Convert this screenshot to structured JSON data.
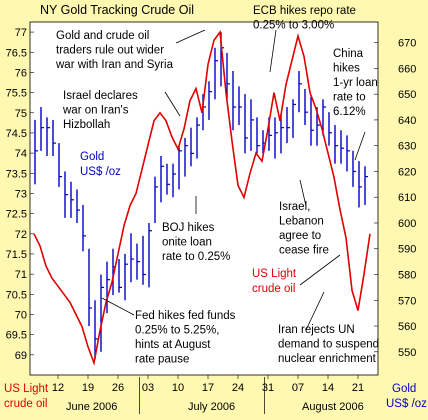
{
  "chart_data": {
    "type": "line",
    "title": "NY Gold Tracking Crude Oil",
    "x_tick_labels": [
      "12",
      "19",
      "26",
      "03",
      "10",
      "17",
      "24",
      "31",
      "07",
      "14",
      "21"
    ],
    "month_labels": [
      "June 2006",
      "July 2006",
      "August 2006"
    ],
    "left_axis": {
      "label_lines": [
        "US Light",
        "crude oil"
      ],
      "color": "#e00000",
      "ylim": [
        68.5,
        77.25
      ],
      "ticks": [
        "77",
        "76.5",
        "76",
        "75.5",
        "75",
        "74.5",
        "74",
        "73.5",
        "73",
        "72.5",
        "72",
        "71.5",
        "71",
        "70.5",
        "70",
        "69.5",
        "69"
      ]
    },
    "right_axis": {
      "label_lines": [
        "Gold",
        "US$ /oz"
      ],
      "color": "#0000c8",
      "ylim": [
        541,
        678
      ],
      "ticks": [
        "670",
        "660",
        "650",
        "640",
        "630",
        "620",
        "610",
        "600",
        "590",
        "580",
        "570",
        "560",
        "550"
      ]
    },
    "series": [
      {
        "name": "Gold US$ /oz",
        "kind": "hlc_bars",
        "axis": "right",
        "color": "#0000c8",
        "values": [
          {
            "x": 0,
            "high": 640,
            "low": 615,
            "close": 628
          },
          {
            "x": 1,
            "high": 645,
            "low": 628,
            "close": 637
          },
          {
            "x": 2,
            "high": 641,
            "low": 626,
            "close": 637
          },
          {
            "x": 3,
            "high": 640,
            "low": 626,
            "close": 631
          },
          {
            "x": 4,
            "high": 631,
            "low": 614,
            "close": 618
          },
          {
            "x": 5,
            "high": 620,
            "low": 602,
            "close": 611
          },
          {
            "x": 6,
            "high": 616,
            "low": 602,
            "close": 609
          },
          {
            "x": 7,
            "high": 613,
            "low": 600,
            "close": 605
          },
          {
            "x": 8,
            "high": 607,
            "low": 589,
            "close": 595
          },
          {
            "x": 9,
            "high": 590,
            "low": 560,
            "close": 567
          },
          {
            "x": 10,
            "high": 570,
            "low": 547,
            "close": 555
          },
          {
            "x": 11,
            "high": 580,
            "low": 550,
            "close": 575
          },
          {
            "x": 12,
            "high": 585,
            "low": 565,
            "close": 578
          },
          {
            "x": 13,
            "high": 590,
            "low": 572,
            "close": 583
          },
          {
            "x": 14,
            "high": 586,
            "low": 573,
            "close": 575
          },
          {
            "x": 15,
            "high": 588,
            "low": 570,
            "close": 584
          },
          {
            "x": 16,
            "high": 596,
            "low": 577,
            "close": 586
          },
          {
            "x": 17,
            "high": 592,
            "low": 578,
            "close": 585
          },
          {
            "x": 18,
            "high": 595,
            "low": 576,
            "close": 580
          },
          {
            "x": 19,
            "high": 600,
            "low": 575,
            "close": 597
          },
          {
            "x": 20,
            "high": 618,
            "low": 600,
            "close": 614
          },
          {
            "x": 21,
            "high": 626,
            "low": 608,
            "close": 622
          },
          {
            "x": 22,
            "high": 623,
            "low": 611,
            "close": 615
          },
          {
            "x": 23,
            "high": 623,
            "low": 610,
            "close": 619
          },
          {
            "x": 24,
            "high": 630,
            "low": 613,
            "close": 628
          },
          {
            "x": 25,
            "high": 633,
            "low": 618,
            "close": 630
          },
          {
            "x": 26,
            "high": 637,
            "low": 622,
            "close": 627
          },
          {
            "x": 27,
            "high": 641,
            "low": 625,
            "close": 638
          },
          {
            "x": 28,
            "high": 650,
            "low": 636,
            "close": 645
          },
          {
            "x": 29,
            "high": 655,
            "low": 640,
            "close": 651
          },
          {
            "x": 30,
            "high": 668,
            "low": 648,
            "close": 663
          },
          {
            "x": 31,
            "high": 674,
            "low": 653,
            "close": 668
          },
          {
            "x": 32,
            "high": 666,
            "low": 648,
            "close": 654
          },
          {
            "x": 33,
            "high": 659,
            "low": 636,
            "close": 645
          },
          {
            "x": 34,
            "high": 653,
            "low": 638,
            "close": 645
          },
          {
            "x": 35,
            "high": 650,
            "low": 627,
            "close": 633
          },
          {
            "x": 36,
            "high": 648,
            "low": 628,
            "close": 640
          },
          {
            "x": 37,
            "high": 641,
            "low": 627,
            "close": 630
          },
          {
            "x": 38,
            "high": 636,
            "low": 627,
            "close": 631
          },
          {
            "x": 39,
            "high": 641,
            "low": 628,
            "close": 634
          },
          {
            "x": 40,
            "high": 641,
            "low": 625,
            "close": 635
          },
          {
            "x": 41,
            "high": 642,
            "low": 627,
            "close": 637
          },
          {
            "x": 42,
            "high": 645,
            "low": 631,
            "close": 637
          },
          {
            "x": 43,
            "high": 648,
            "low": 633,
            "close": 646
          },
          {
            "x": 44,
            "high": 659,
            "low": 643,
            "close": 654
          },
          {
            "x": 45,
            "high": 652,
            "low": 638,
            "close": 643
          },
          {
            "x": 46,
            "high": 649,
            "low": 630,
            "close": 636
          },
          {
            "x": 47,
            "high": 645,
            "low": 630,
            "close": 638
          },
          {
            "x": 48,
            "high": 648,
            "low": 634,
            "close": 645
          },
          {
            "x": 49,
            "high": 643,
            "low": 630,
            "close": 635
          },
          {
            "x": 50,
            "high": 638,
            "low": 623,
            "close": 630
          },
          {
            "x": 51,
            "high": 636,
            "low": 623,
            "close": 629
          },
          {
            "x": 52,
            "high": 634,
            "low": 620,
            "close": 628
          },
          {
            "x": 53,
            "high": 628,
            "low": 614,
            "close": 620
          },
          {
            "x": 54,
            "high": 624,
            "low": 606,
            "close": 614
          },
          {
            "x": 55,
            "high": 622,
            "low": 607,
            "close": 618
          }
        ]
      },
      {
        "name": "US Light crude oil",
        "kind": "line",
        "axis": "left",
        "color": "#e00000",
        "values": [
          {
            "x": 0,
            "y": 72.0
          },
          {
            "x": 1,
            "y": 71.7
          },
          {
            "x": 2,
            "y": 71.2
          },
          {
            "x": 3,
            "y": 70.9
          },
          {
            "x": 4,
            "y": 70.7
          },
          {
            "x": 5,
            "y": 70.5
          },
          {
            "x": 6,
            "y": 70.3
          },
          {
            "x": 7,
            "y": 70.0
          },
          {
            "x": 8,
            "y": 69.7
          },
          {
            "x": 9,
            "y": 69.2
          },
          {
            "x": 10,
            "y": 68.8
          },
          {
            "x": 11,
            "y": 69.6
          },
          {
            "x": 12,
            "y": 70.3
          },
          {
            "x": 13,
            "y": 70.8
          },
          {
            "x": 14,
            "y": 71.5
          },
          {
            "x": 15,
            "y": 72.2
          },
          {
            "x": 16,
            "y": 72.7
          },
          {
            "x": 17,
            "y": 73.0
          },
          {
            "x": 18,
            "y": 73.6
          },
          {
            "x": 19,
            "y": 74.2
          },
          {
            "x": 20,
            "y": 74.8
          },
          {
            "x": 21,
            "y": 75.0
          },
          {
            "x": 22,
            "y": 74.8
          },
          {
            "x": 23,
            "y": 74.4
          },
          {
            "x": 24,
            "y": 74.1
          },
          {
            "x": 25,
            "y": 74.6
          },
          {
            "x": 26,
            "y": 75.3
          },
          {
            "x": 27,
            "y": 75.6
          },
          {
            "x": 28,
            "y": 75.0
          },
          {
            "x": 29,
            "y": 76.2
          },
          {
            "x": 30,
            "y": 76.8
          },
          {
            "x": 31,
            "y": 77.0
          },
          {
            "x": 32,
            "y": 75.5
          },
          {
            "x": 33,
            "y": 74.3
          },
          {
            "x": 34,
            "y": 73.2
          },
          {
            "x": 35,
            "y": 72.9
          },
          {
            "x": 36,
            "y": 73.5
          },
          {
            "x": 37,
            "y": 74.0
          },
          {
            "x": 38,
            "y": 73.8
          },
          {
            "x": 39,
            "y": 74.6
          },
          {
            "x": 40,
            "y": 75.5
          },
          {
            "x": 41,
            "y": 74.8
          },
          {
            "x": 42,
            "y": 75.7
          },
          {
            "x": 43,
            "y": 76.3
          },
          {
            "x": 44,
            "y": 76.9
          },
          {
            "x": 45,
            "y": 76.4
          },
          {
            "x": 46,
            "y": 75.5
          },
          {
            "x": 47,
            "y": 75.1
          },
          {
            "x": 48,
            "y": 74.6
          },
          {
            "x": 49,
            "y": 74.0
          },
          {
            "x": 50,
            "y": 73.4
          },
          {
            "x": 51,
            "y": 72.6
          },
          {
            "x": 52,
            "y": 71.9
          },
          {
            "x": 53,
            "y": 70.6
          },
          {
            "x": 54,
            "y": 70.1
          },
          {
            "x": 55,
            "y": 71.0
          },
          {
            "x": 56,
            "y": 72.0
          }
        ]
      }
    ],
    "annotations": [
      {
        "id": "gold-crude-war",
        "lines": [
          "Gold and crude oil",
          "traders rule out wider",
          "war with Iran and Syria"
        ]
      },
      {
        "id": "ecb",
        "lines": [
          "ECB hikes repo rate",
          "0.25% to 3.00%"
        ]
      },
      {
        "id": "china",
        "lines": [
          "China",
          "hikes",
          "1-yr loan",
          "rate to",
          "6.12%"
        ]
      },
      {
        "id": "israel-war",
        "lines": [
          "Israel declares",
          "war on Iran's",
          "Hizbollah"
        ]
      },
      {
        "id": "boj",
        "lines": [
          "BOJ hikes",
          "onite loan",
          "rate to 0.25%"
        ]
      },
      {
        "id": "ceasefire",
        "lines": [
          "Israel,",
          "Lebanon",
          "agree to",
          "cease fire"
        ]
      },
      {
        "id": "fed",
        "lines": [
          "Fed hikes fed funds",
          "0.25% to 5.25%,",
          "hints at August",
          "rate pause"
        ]
      },
      {
        "id": "iran-un",
        "lines": [
          "Iran rejects UN",
          "demand to suspend",
          "nuclear enrichment"
        ]
      }
    ],
    "grid": false,
    "legend": "inline labels"
  }
}
